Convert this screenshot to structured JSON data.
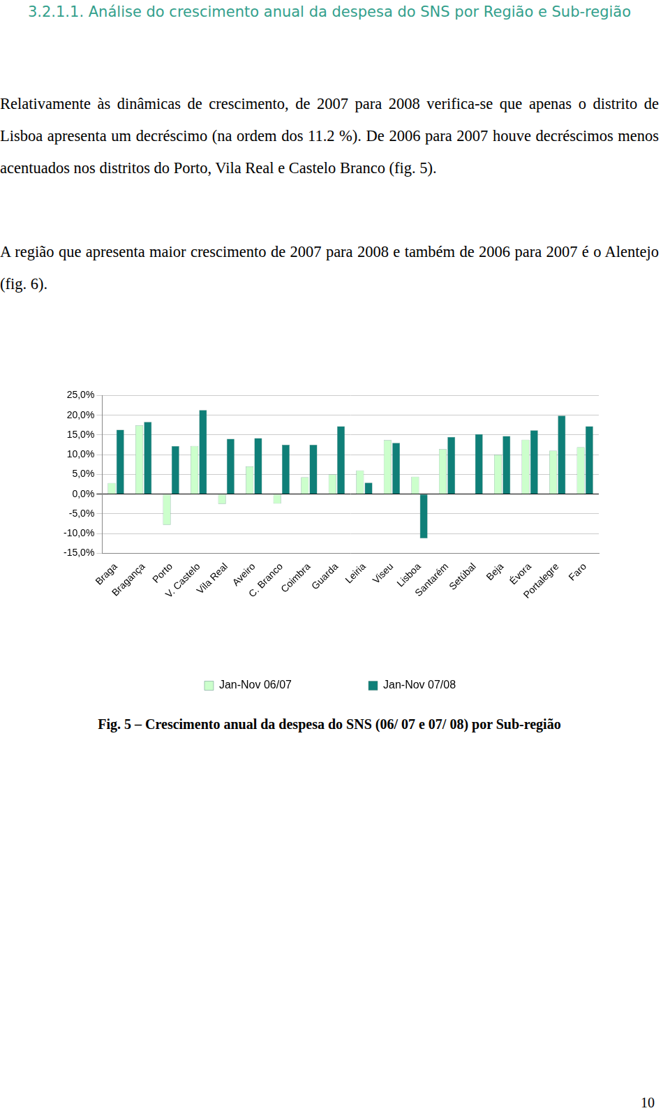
{
  "heading": "3.2.1.1. Análise do crescimento anual da despesa do SNS por Região e Sub-região",
  "paragraphs": [
    "Relativamente às dinâmicas de crescimento, de 2007 para 2008 verifica-se que apenas o distrito de Lisboa apresenta um decréscimo (na ordem dos 11.2 %). De 2006 para 2007 houve decréscimos menos acentuados nos distritos do Porto, Vila Real e Castelo Branco (fig. 5).",
    "A região que apresenta maior crescimento de 2007 para 2008 e também de 2006 para 2007 é o Alentejo (fig. 6)."
  ],
  "chart_data": {
    "type": "bar",
    "categories": [
      "Braga",
      "Bragança",
      "Porto",
      "V. Castelo",
      "Vila Real",
      "Aveiro",
      "C. Branco",
      "Coimbra",
      "Guarda",
      "Leiria",
      "Viseu",
      "Lisboa",
      "Santarém",
      "Setúbal",
      "Beja",
      "Évora",
      "Portalegre",
      "Faro"
    ],
    "series": [
      {
        "name": "Jan-Nov 06/07",
        "color": "#ccffcc",
        "values": [
          2.8,
          17.4,
          -7.8,
          12.2,
          -2.5,
          7.0,
          -2.4,
          4.3,
          5.0,
          6.0,
          13.7,
          4.4,
          11.4,
          0.0,
          10.0,
          13.8,
          11.0,
          11.9
        ]
      },
      {
        "name": "Jan-Nov 07/08",
        "color": "#0f7f78",
        "values": [
          16.3,
          18.3,
          12.2,
          21.3,
          14.0,
          14.2,
          12.5,
          12.5,
          17.2,
          2.9,
          13.0,
          -11.2,
          14.5,
          15.2,
          14.7,
          16.2,
          19.9,
          17.2
        ]
      }
    ],
    "ylim": [
      -15,
      25
    ],
    "yticks": [
      {
        "value": -15,
        "label": "-15,0%"
      },
      {
        "value": -10,
        "label": "-10,0%"
      },
      {
        "value": -5,
        "label": "-5,0%"
      },
      {
        "value": 0,
        "label": "0,0%"
      },
      {
        "value": 5,
        "label": "5,0%"
      },
      {
        "value": 10,
        "label": "10,0%"
      },
      {
        "value": 15,
        "label": "15,0%"
      },
      {
        "value": 20,
        "label": "20,0%"
      },
      {
        "value": 25,
        "label": "25,0%"
      }
    ],
    "grid": true,
    "legend": "bottom"
  },
  "caption": "Fig. 5 – Crescimento anual da despesa do SNS (06/ 07 e 07/ 08) por Sub-região",
  "page_number": "10"
}
